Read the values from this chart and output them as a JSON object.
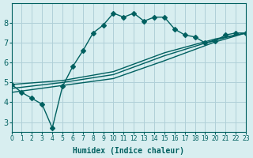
{
  "xlabel": "Humidex (Indice chaleur)",
  "bg_color": "#d8eef0",
  "grid_color": "#b0d0d8",
  "line_color": "#006060",
  "xlim": [
    0,
    23
  ],
  "ylim": [
    2.5,
    9.0
  ],
  "yticks": [
    3,
    4,
    5,
    6,
    7,
    8
  ],
  "xticks": [
    0,
    1,
    2,
    3,
    4,
    5,
    6,
    7,
    8,
    9,
    10,
    11,
    12,
    13,
    14,
    15,
    16,
    17,
    18,
    19,
    20,
    21,
    22,
    23
  ],
  "line1_x": [
    0,
    1,
    2,
    3,
    4,
    5,
    6,
    7,
    8,
    9,
    10,
    11,
    12,
    13,
    14,
    15,
    16,
    17,
    18,
    19,
    20,
    21,
    22,
    23
  ],
  "line1_y": [
    4.9,
    4.5,
    4.2,
    3.9,
    2.7,
    4.8,
    5.8,
    6.6,
    7.5,
    7.9,
    8.5,
    8.3,
    8.5,
    8.1,
    8.3,
    8.3,
    7.7,
    7.4,
    7.3,
    7.0,
    7.1,
    7.4,
    7.5,
    7.5
  ],
  "line2_x": [
    0,
    5,
    10,
    15,
    20,
    23
  ],
  "line2_y": [
    4.5,
    4.85,
    5.2,
    6.1,
    7.05,
    7.5
  ],
  "line3_x": [
    0,
    5,
    10,
    15,
    20,
    23
  ],
  "line3_y": [
    4.7,
    5.0,
    5.4,
    6.35,
    7.15,
    7.5
  ],
  "line4_x": [
    0,
    5,
    10,
    15,
    20,
    23
  ],
  "line4_y": [
    4.9,
    5.1,
    5.55,
    6.5,
    7.2,
    7.5
  ]
}
